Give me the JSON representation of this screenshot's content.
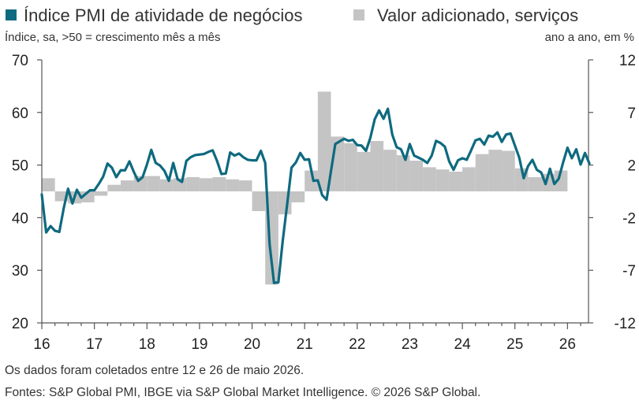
{
  "chart_data": {
    "type": "line+bar",
    "legend": {
      "line_label": "Índice PMI de atividade de negócios",
      "bar_label": "Valor adicionado, serviços"
    },
    "left_axis": {
      "unit": "Índice, sa, >50 = crescimento mês a mês",
      "range": [
        20,
        70
      ],
      "ticks": [
        "70",
        "60",
        "50",
        "40",
        "30",
        "20"
      ]
    },
    "right_axis": {
      "unit": "ano a ano, em %",
      "range": [
        -12,
        12
      ],
      "ticks": [
        "12",
        "7",
        "2",
        "-2",
        "-7",
        "-12"
      ]
    },
    "x_axis": {
      "range": [
        2016.0,
        2026.4
      ],
      "tick_labels": [
        "16",
        "17",
        "18",
        "19",
        "20",
        "21",
        "22",
        "23",
        "24",
        "25",
        "26"
      ]
    },
    "colors": {
      "line": "#0e6a7f",
      "bars": "#c4c4c4",
      "axis": "#555555",
      "bar_base": "#c4c4c4"
    },
    "bars": {
      "name": "Valor adicionado, serviços",
      "baseline": 0,
      "points": [
        [
          2016.0,
          1.2
        ],
        [
          2016.25,
          -0.9
        ],
        [
          2016.5,
          -1.1
        ],
        [
          2016.75,
          -1.0
        ],
        [
          2017.0,
          -0.4
        ],
        [
          2017.25,
          0.6
        ],
        [
          2017.5,
          1.0
        ],
        [
          2017.75,
          1.4
        ],
        [
          2018.0,
          1.4
        ],
        [
          2018.25,
          1.1
        ],
        [
          2018.5,
          1.2
        ],
        [
          2018.75,
          1.3
        ],
        [
          2019.0,
          1.2
        ],
        [
          2019.25,
          1.3
        ],
        [
          2019.5,
          1.1
        ],
        [
          2019.75,
          1.0
        ],
        [
          2020.0,
          -1.8
        ],
        [
          2020.25,
          -8.5
        ],
        [
          2020.5,
          -2.1
        ],
        [
          2020.75,
          -1.0
        ],
        [
          2021.0,
          1.9
        ],
        [
          2021.25,
          9.1
        ],
        [
          2021.5,
          5.0
        ],
        [
          2021.75,
          4.4
        ],
        [
          2022.0,
          3.6
        ],
        [
          2022.25,
          4.6
        ],
        [
          2022.5,
          3.8
        ],
        [
          2022.75,
          3.3
        ],
        [
          2023.0,
          2.8
        ],
        [
          2023.25,
          2.2
        ],
        [
          2023.5,
          2.0
        ],
        [
          2023.75,
          1.8
        ],
        [
          2024.0,
          2.2
        ],
        [
          2024.25,
          3.4
        ],
        [
          2024.5,
          3.8
        ],
        [
          2024.75,
          3.7
        ],
        [
          2025.0,
          2.1
        ],
        [
          2025.25,
          1.3
        ],
        [
          2025.5,
          1.6
        ],
        [
          2025.75,
          1.9
        ]
      ]
    },
    "line": {
      "name": "Índice PMI de atividade de negócios",
      "points": [
        [
          2016.0,
          44.4
        ],
        [
          2016.083,
          37.2
        ],
        [
          2016.167,
          38.4
        ],
        [
          2016.25,
          37.5
        ],
        [
          2016.333,
          37.3
        ],
        [
          2016.417,
          41.8
        ],
        [
          2016.5,
          45.5
        ],
        [
          2016.583,
          42.7
        ],
        [
          2016.667,
          45.3
        ],
        [
          2016.75,
          43.8
        ],
        [
          2016.833,
          44.5
        ],
        [
          2016.917,
          45.2
        ],
        [
          2017.0,
          45.2
        ],
        [
          2017.083,
          46.4
        ],
        [
          2017.167,
          47.8
        ],
        [
          2017.25,
          50.3
        ],
        [
          2017.333,
          49.5
        ],
        [
          2017.417,
          47.7
        ],
        [
          2017.5,
          49.0
        ],
        [
          2017.583,
          49.0
        ],
        [
          2017.667,
          50.7
        ],
        [
          2017.75,
          48.7
        ],
        [
          2017.833,
          47.0
        ],
        [
          2017.917,
          47.7
        ],
        [
          2018.0,
          50.1
        ],
        [
          2018.083,
          52.9
        ],
        [
          2018.167,
          50.4
        ],
        [
          2018.25,
          49.9
        ],
        [
          2018.333,
          48.9
        ],
        [
          2018.417,
          47.0
        ],
        [
          2018.5,
          50.4
        ],
        [
          2018.583,
          47.3
        ],
        [
          2018.667,
          46.8
        ],
        [
          2018.75,
          50.8
        ],
        [
          2018.833,
          51.5
        ],
        [
          2018.917,
          51.9
        ],
        [
          2019.0,
          52.0
        ],
        [
          2019.083,
          52.1
        ],
        [
          2019.167,
          52.5
        ],
        [
          2019.25,
          52.8
        ],
        [
          2019.333,
          50.8
        ],
        [
          2019.417,
          48.3
        ],
        [
          2019.5,
          48.4
        ],
        [
          2019.583,
          52.4
        ],
        [
          2019.667,
          51.8
        ],
        [
          2019.75,
          52.2
        ],
        [
          2019.833,
          51.5
        ],
        [
          2019.917,
          51.0
        ],
        [
          2020.0,
          50.9
        ],
        [
          2020.083,
          50.9
        ],
        [
          2020.167,
          52.7
        ],
        [
          2020.25,
          50.4
        ],
        [
          2020.333,
          35.0
        ],
        [
          2020.417,
          27.6
        ],
        [
          2020.5,
          27.7
        ],
        [
          2020.583,
          35.6
        ],
        [
          2020.667,
          42.5
        ],
        [
          2020.75,
          49.5
        ],
        [
          2020.833,
          50.5
        ],
        [
          2020.917,
          52.3
        ],
        [
          2021.0,
          51.0
        ],
        [
          2021.083,
          51.1
        ],
        [
          2021.167,
          47.0
        ],
        [
          2021.25,
          47.1
        ],
        [
          2021.333,
          44.3
        ],
        [
          2021.417,
          43.4
        ],
        [
          2021.5,
          48.8
        ],
        [
          2021.583,
          54.0
        ],
        [
          2021.667,
          54.5
        ],
        [
          2021.75,
          55.0
        ],
        [
          2021.833,
          54.6
        ],
        [
          2021.917,
          54.8
        ],
        [
          2022.0,
          53.8
        ],
        [
          2022.083,
          53.7
        ],
        [
          2022.167,
          52.7
        ],
        [
          2022.25,
          55.2
        ],
        [
          2022.333,
          58.7
        ],
        [
          2022.417,
          60.4
        ],
        [
          2022.5,
          58.8
        ],
        [
          2022.583,
          60.7
        ],
        [
          2022.667,
          55.8
        ],
        [
          2022.75,
          53.4
        ],
        [
          2022.833,
          53.0
        ],
        [
          2022.917,
          51.0
        ],
        [
          2023.0,
          54.0
        ],
        [
          2023.083,
          51.8
        ],
        [
          2023.167,
          51.4
        ],
        [
          2023.25,
          51.0
        ],
        [
          2023.333,
          50.4
        ],
        [
          2023.417,
          51.8
        ],
        [
          2023.5,
          54.6
        ],
        [
          2023.583,
          54.2
        ],
        [
          2023.667,
          53.5
        ],
        [
          2023.75,
          50.7
        ],
        [
          2023.833,
          49.1
        ],
        [
          2023.917,
          50.9
        ],
        [
          2024.0,
          51.3
        ],
        [
          2024.083,
          51.0
        ],
        [
          2024.167,
          52.8
        ],
        [
          2024.25,
          54.7
        ],
        [
          2024.333,
          55.0
        ],
        [
          2024.417,
          53.9
        ],
        [
          2024.5,
          55.6
        ],
        [
          2024.583,
          55.4
        ],
        [
          2024.667,
          56.2
        ],
        [
          2024.75,
          54.4
        ],
        [
          2024.833,
          55.8
        ],
        [
          2024.917,
          56.0
        ],
        [
          2025.0,
          53.7
        ],
        [
          2025.083,
          51.4
        ],
        [
          2025.167,
          47.5
        ],
        [
          2025.25,
          49.8
        ],
        [
          2025.333,
          51.0
        ],
        [
          2025.417,
          49.1
        ],
        [
          2025.5,
          48.6
        ],
        [
          2025.583,
          46.4
        ],
        [
          2025.667,
          49.3
        ],
        [
          2025.75,
          46.4
        ],
        [
          2025.833,
          47.4
        ],
        [
          2025.917,
          50.5
        ],
        [
          2026.0,
          53.3
        ],
        [
          2026.083,
          51.3
        ],
        [
          2026.167,
          53.0
        ],
        [
          2026.25,
          50.1
        ],
        [
          2026.333,
          52.3
        ],
        [
          2026.417,
          50.3
        ]
      ]
    }
  },
  "footer": {
    "note": "Os dados foram coletados entre 12 e 26 de maio 2026.",
    "sources": "Fontes: S&P Global PMI, IBGE via S&P Global Market Intelligence. © 2026 S&P Global."
  }
}
